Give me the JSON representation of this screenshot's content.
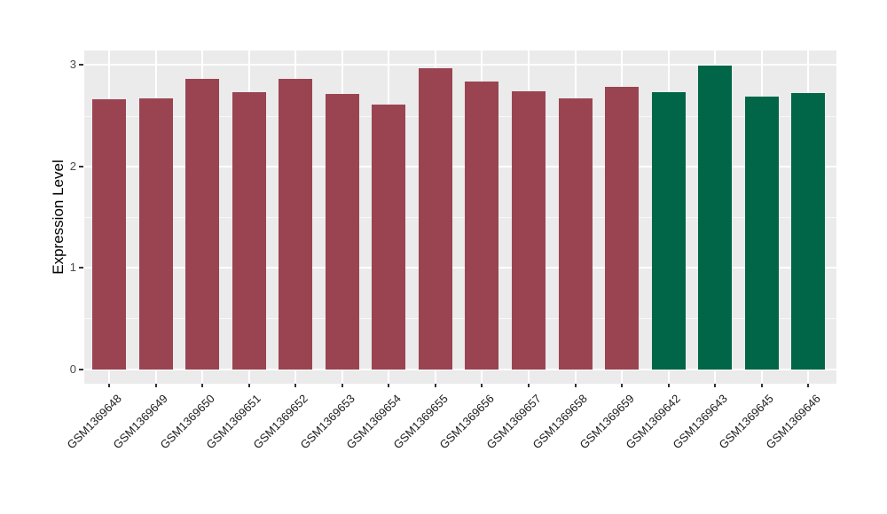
{
  "figure": {
    "background": "#FFFFFF"
  },
  "chart_data": {
    "type": "bar",
    "title": "",
    "xlabel": "",
    "ylabel": "Expression Level",
    "legend": "none",
    "grid": "on",
    "categories": [
      "GSM1369648",
      "GSM1369649",
      "GSM1369650",
      "GSM1369651",
      "GSM1369652",
      "GSM1369653",
      "GSM1369654",
      "GSM1369655",
      "GSM1369656",
      "GSM1369657",
      "GSM1369658",
      "GSM1369659",
      "GSM1369642",
      "GSM1369643",
      "GSM1369645",
      "GSM1369646"
    ],
    "values": [
      2.66,
      2.67,
      2.86,
      2.73,
      2.86,
      2.71,
      2.61,
      2.97,
      2.84,
      2.74,
      2.67,
      2.78,
      2.73,
      2.99,
      2.69,
      2.72
    ],
    "bar_colors": [
      "#9A4452",
      "#9A4452",
      "#9A4452",
      "#9A4452",
      "#9A4452",
      "#9A4452",
      "#9A4452",
      "#9A4452",
      "#9A4452",
      "#9A4452",
      "#9A4452",
      "#9A4452",
      "#006647",
      "#006647",
      "#006647",
      "#006647"
    ],
    "color_groups": [
      {
        "color": "#9A4452",
        "count": 12
      },
      {
        "color": "#006647",
        "count": 4
      }
    ],
    "x_tick_label_angle_deg": 45,
    "y_axis": {
      "ticks": [
        0,
        1,
        2,
        3
      ],
      "minor_ticks": [
        0.5,
        1.5,
        2.5
      ],
      "range": [
        0,
        3.15
      ]
    },
    "panel": {
      "background": "#EBEBEB",
      "gridline_color": "#FFFFFF",
      "tick_color": "#333333"
    }
  }
}
